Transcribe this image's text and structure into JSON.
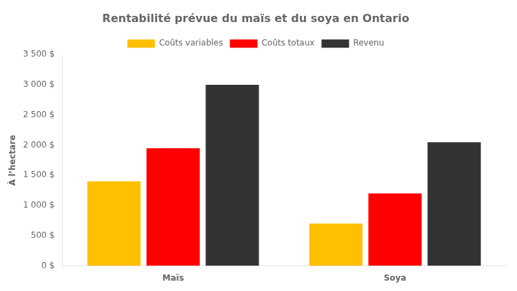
{
  "chart_data": {
    "type": "bar",
    "title": "Rentabilité prévue du maïs et du soya en Ontario",
    "ylabel": "À l’hectare",
    "categories": [
      "Maïs",
      "Soya"
    ],
    "series": [
      {
        "name": "Coûts variables",
        "color": "#FFC000",
        "values": [
          1400,
          700
        ]
      },
      {
        "name": "Coûts totaux",
        "color": "#FF0000",
        "values": [
          1950,
          1200
        ]
      },
      {
        "name": "Revenu",
        "color": "#333333",
        "values": [
          3000,
          2050
        ]
      }
    ],
    "ylim": [
      0,
      3500
    ],
    "yticks": [
      {
        "value": 0,
        "label": "0 $"
      },
      {
        "value": 500,
        "label": "500 $"
      },
      {
        "value": 1000,
        "label": "1 000 $"
      },
      {
        "value": 1500,
        "label": "1 500 $"
      },
      {
        "value": 2000,
        "label": "2 000 $"
      },
      {
        "value": 2500,
        "label": "2 500 $"
      },
      {
        "value": 3000,
        "label": "3 000 $"
      },
      {
        "value": 3500,
        "label": "3 500 $"
      }
    ],
    "grid": false,
    "legend": "top"
  }
}
